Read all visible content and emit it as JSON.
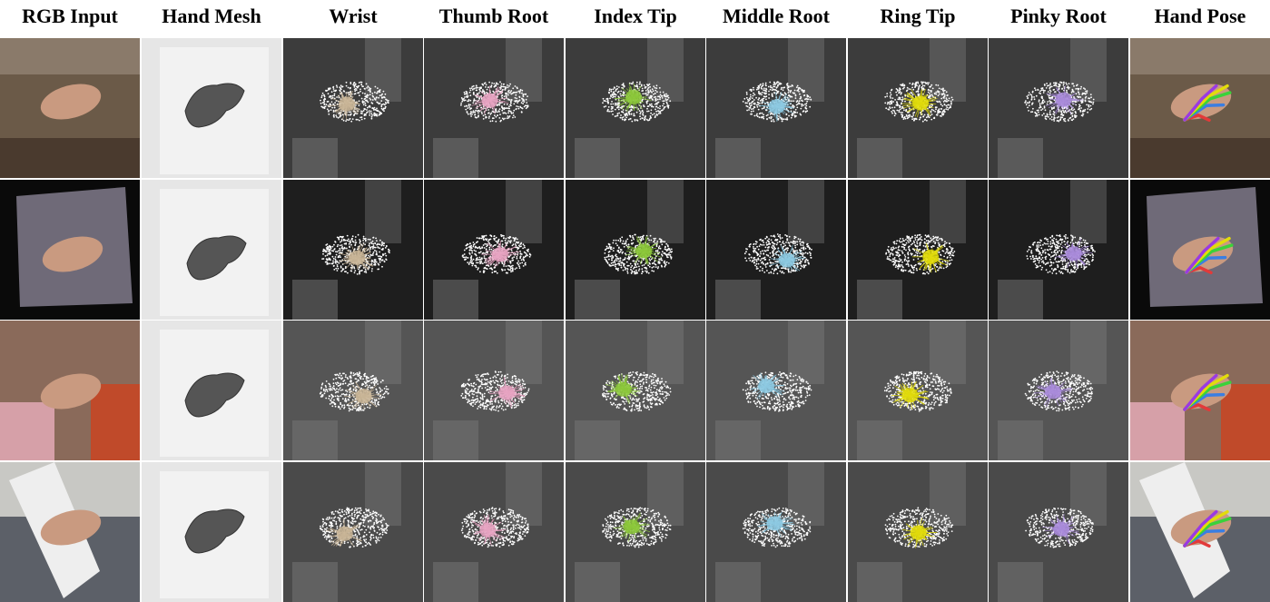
{
  "columns": [
    {
      "key": "rgb_input",
      "label": "RGB Input",
      "kind": "rgb"
    },
    {
      "key": "hand_mesh",
      "label": "Hand Mesh",
      "kind": "mesh"
    },
    {
      "key": "wrist",
      "label": "Wrist",
      "kind": "joint",
      "color": "#c9b597"
    },
    {
      "key": "thumb_root",
      "label": "Thumb Root",
      "kind": "joint",
      "color": "#e8a3c2"
    },
    {
      "key": "index_tip",
      "label": "Index Tip",
      "kind": "joint",
      "color": "#8cc83a"
    },
    {
      "key": "middle_root",
      "label": "Middle Root",
      "kind": "joint",
      "color": "#8cc9e2"
    },
    {
      "key": "ring_tip",
      "label": "Ring Tip",
      "kind": "joint",
      "color": "#e2dc0a"
    },
    {
      "key": "pinky_root",
      "label": "Pinky Root",
      "kind": "joint",
      "color": "#a98bdb"
    },
    {
      "key": "hand_pose",
      "label": "Hand Pose",
      "kind": "pose"
    }
  ],
  "rows": [
    {
      "key": "sample-1",
      "background": "#3c3c3c"
    },
    {
      "key": "sample-2",
      "background": "#1e1e1e"
    },
    {
      "key": "sample-3",
      "background": "#555555"
    },
    {
      "key": "sample-4",
      "background": "#4a4a4a"
    }
  ],
  "skeleton_colors": [
    "#e23a3a",
    "#3a7ee2",
    "#3ad23a",
    "#e2dc0a",
    "#9a3ae2"
  ]
}
